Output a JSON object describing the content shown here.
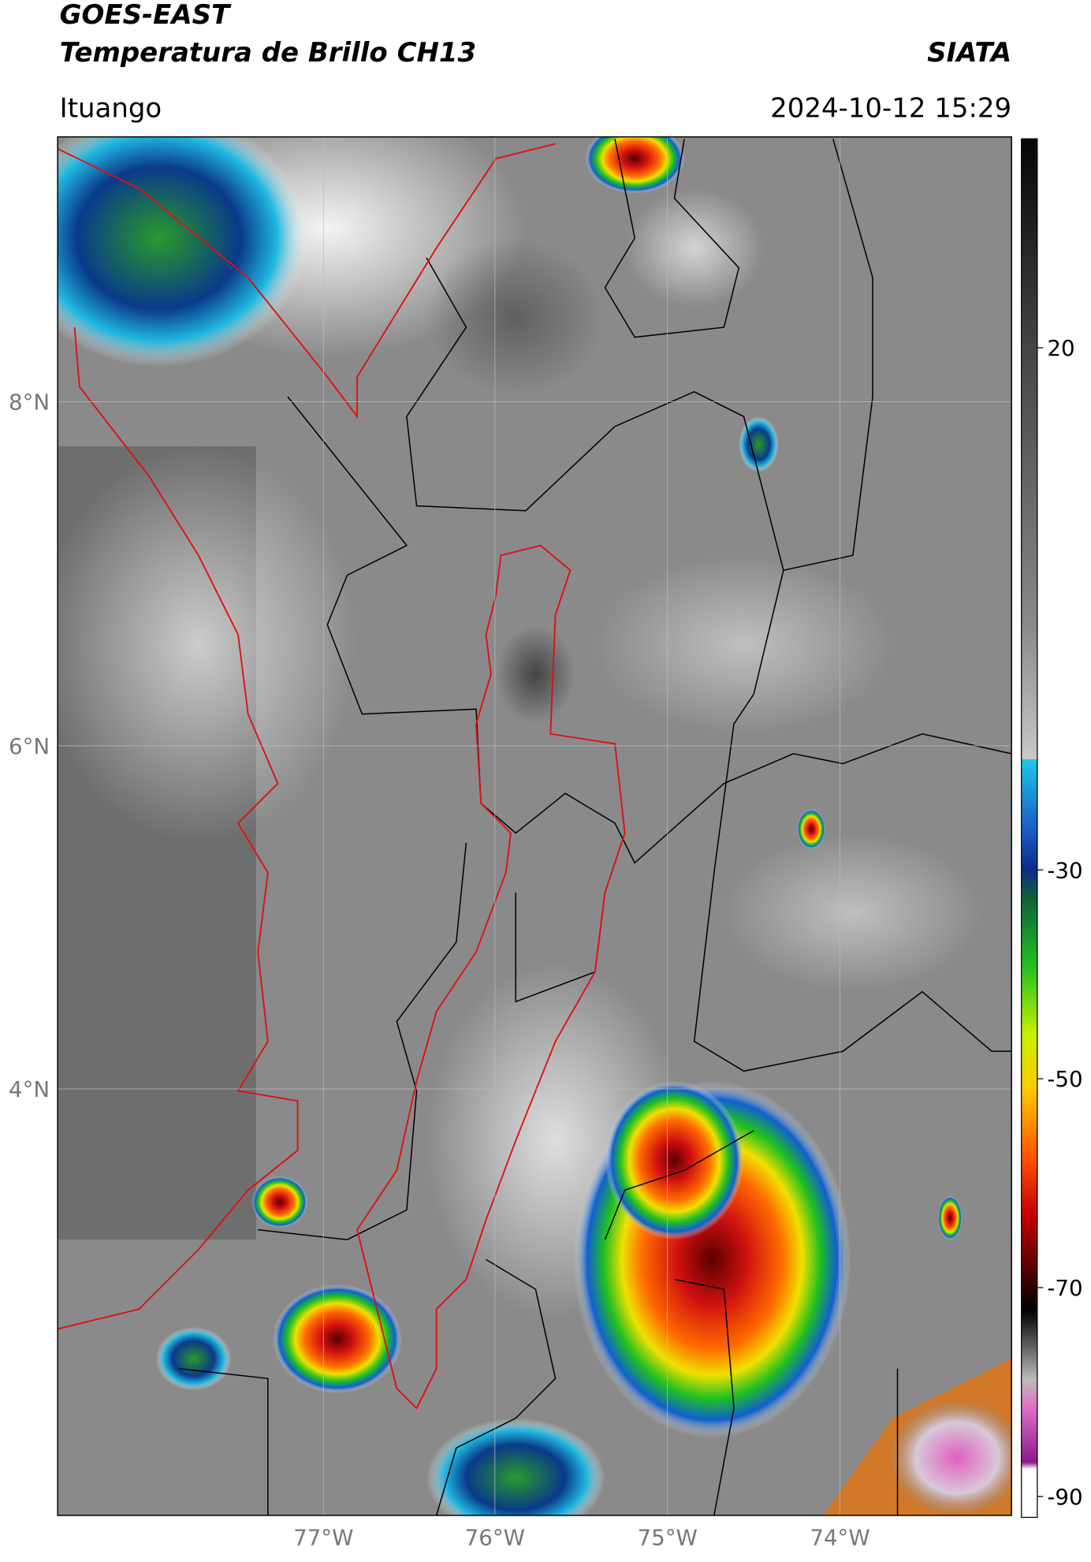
{
  "header": {
    "title": "GOES-EAST",
    "subtitle": "Temperatura de Brillo CH13",
    "source": "SIATA",
    "location": "Ituango",
    "datetime": "2024-10-12 15:29"
  },
  "map": {
    "lat_ticks": [
      "8°N",
      "6°N",
      "4°N"
    ],
    "lon_ticks": [
      "77°W",
      "76°W",
      "75°W",
      "74°W"
    ]
  },
  "colorbar": {
    "range": [
      -92,
      40
    ],
    "ticks": [
      20,
      -30,
      -50,
      -70,
      -90
    ]
  }
}
